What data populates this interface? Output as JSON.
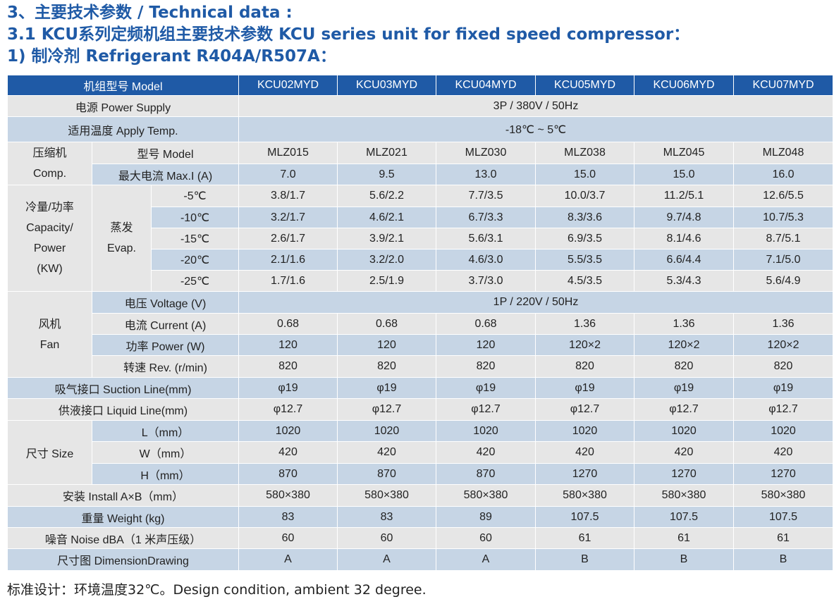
{
  "headings": {
    "h1": "3、主要技术参数 / Technical data :",
    "h2": "3.1 KCU系列定频机组主要技术参数 KCU series unit for fixed speed compressor：",
    "h3": "1) 制冷剂 Refrigerant R404A/R507A："
  },
  "colors": {
    "header_blue": "#1f5aa6",
    "row_gray": "#e6e6e6",
    "row_blue": "#c6d5e5"
  },
  "table": {
    "model_label": "机组型号 Model",
    "models": [
      "KCU02MYD",
      "KCU03MYD",
      "KCU04MYD",
      "KCU05MYD",
      "KCU06MYD",
      "KCU07MYD"
    ],
    "power_supply": {
      "label": "电源 Power Supply",
      "value": "3P / 380V / 50Hz"
    },
    "apply_temp": {
      "label": "适用温度 Apply Temp.",
      "value": "-18℃ ~ 5℃"
    },
    "compressor": {
      "group_zh": "压缩机",
      "group_en": "Comp.",
      "model_label": "型号 Model",
      "models": [
        "MLZ015",
        "MLZ021",
        "MLZ030",
        "MLZ038",
        "MLZ045",
        "MLZ048"
      ],
      "current_label": "最大电流 Max.I (A)",
      "currents": [
        "7.0",
        "9.5",
        "13.0",
        "15.0",
        "15.0",
        "16.0"
      ]
    },
    "capacity": {
      "label_l1": "冷量/功率",
      "label_l2": "Capacity/",
      "label_l3": "Power",
      "label_l4": "(KW)",
      "evap_zh": "蒸发",
      "evap_en": "Evap.",
      "rows": [
        {
          "temp": "-5℃",
          "values": [
            "3.8/1.7",
            "5.6/2.2",
            "7.7/3.5",
            "10.0/3.7",
            "11.2/5.1",
            "12.6/5.5"
          ]
        },
        {
          "temp": "-10℃",
          "values": [
            "3.2/1.7",
            "4.6/2.1",
            "6.7/3.3",
            "8.3/3.6",
            "9.7/4.8",
            "10.7/5.3"
          ]
        },
        {
          "temp": "-15℃",
          "values": [
            "2.6/1.7",
            "3.9/2.1",
            "5.6/3.1",
            "6.9/3.5",
            "8.1/4.6",
            "8.7/5.1"
          ]
        },
        {
          "temp": "-20℃",
          "values": [
            "2.1/1.6",
            "3.2/2.0",
            "4.6/3.0",
            "5.5/3.5",
            "6.6/4.4",
            "7.1/5.0"
          ]
        },
        {
          "temp": "-25℃",
          "values": [
            "1.7/1.6",
            "2.5/1.9",
            "3.7/3.0",
            "4.5/3.5",
            "5.3/4.3",
            "5.6/4.9"
          ]
        }
      ]
    },
    "fan": {
      "group_zh": "风机",
      "group_en": "Fan",
      "voltage_label": "电压 Voltage (V)",
      "voltage_value": "1P / 220V / 50Hz",
      "current_label": "电流 Current (A)",
      "currents": [
        "0.68",
        "0.68",
        "0.68",
        "1.36",
        "1.36",
        "1.36"
      ],
      "power_label": "功率 Power (W)",
      "powers": [
        "120",
        "120",
        "120",
        "120×2",
        "120×2",
        "120×2"
      ],
      "rev_label": "转速 Rev. (r/min)",
      "revs": [
        "820",
        "820",
        "820",
        "820",
        "820",
        "820"
      ]
    },
    "suction": {
      "label": "吸气接口 Suction Line(mm)",
      "values": [
        "φ19",
        "φ19",
        "φ19",
        "φ19",
        "φ19",
        "φ19"
      ]
    },
    "liquid": {
      "label": "供液接口 Liquid Line(mm)",
      "values": [
        "φ12.7",
        "φ12.7",
        "φ12.7",
        "φ12.7",
        "φ12.7",
        "φ12.7"
      ]
    },
    "size": {
      "label": "尺寸 Size",
      "l_label": "L（mm）",
      "l_values": [
        "1020",
        "1020",
        "1020",
        "1020",
        "1020",
        "1020"
      ],
      "w_label": "W（mm）",
      "w_values": [
        "420",
        "420",
        "420",
        "420",
        "420",
        "420"
      ],
      "h_label": "H（mm）",
      "h_values": [
        "870",
        "870",
        "870",
        "1270",
        "1270",
        "1270"
      ]
    },
    "install": {
      "label": "安装 Install A×B（mm）",
      "values": [
        "580×380",
        "580×380",
        "580×380",
        "580×380",
        "580×380",
        "580×380"
      ]
    },
    "weight": {
      "label": "重量 Weight (kg)",
      "values": [
        "83",
        "83",
        "89",
        "107.5",
        "107.5",
        "107.5"
      ]
    },
    "noise": {
      "label": "噪音 Noise dBA（1 米声压级）",
      "values": [
        "60",
        "60",
        "60",
        "61",
        "61",
        "61"
      ]
    },
    "drawing": {
      "label": "尺寸图 DimensionDrawing",
      "values": [
        "A",
        "A",
        "A",
        "B",
        "B",
        "B"
      ]
    }
  },
  "note": "标准设计：环境温度32℃。Design condition, ambient 32 degree."
}
